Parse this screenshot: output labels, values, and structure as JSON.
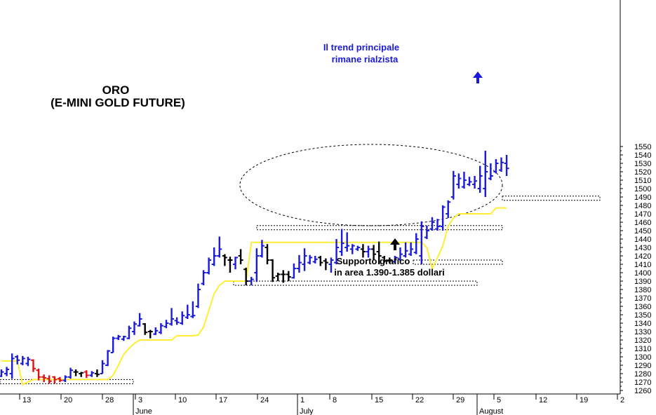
{
  "chart_data": {
    "type": "ohlc",
    "title": "ORO",
    "subtitle": "(E-MINI GOLD FUTURE)",
    "ylim": [
      1260,
      1550
    ],
    "y_ticks": [
      1260,
      1270,
      1280,
      1290,
      1300,
      1310,
      1320,
      1330,
      1340,
      1350,
      1360,
      1370,
      1380,
      1390,
      1400,
      1410,
      1420,
      1430,
      1440,
      1450,
      1460,
      1470,
      1480,
      1490,
      1500,
      1510,
      1520,
      1530,
      1540,
      1550
    ],
    "x_day_labels": [
      "13",
      "20",
      "28",
      "3",
      "10",
      "17",
      "24",
      "1",
      "8",
      "15",
      "22",
      "29",
      "5",
      "12",
      "19",
      "2"
    ],
    "x_month_labels": [
      "June",
      "July",
      "August"
    ],
    "grid": false,
    "colors": {
      "up": "#1a1adc",
      "down": "#e01010",
      "neutral": "#000000",
      "average": "#ffee33",
      "axis": "#000000"
    },
    "bars": [
      {
        "h": 1285,
        "l": 1276,
        "o": 1277,
        "c": 1282,
        "color": "up"
      },
      {
        "h": 1288,
        "l": 1277,
        "o": 1280,
        "c": 1285,
        "color": "up"
      },
      {
        "h": 1304,
        "l": 1274,
        "o": 1280,
        "c": 1298,
        "color": "up"
      },
      {
        "h": 1302,
        "l": 1291,
        "o": 1300,
        "c": 1296,
        "color": "up"
      },
      {
        "h": 1301,
        "l": 1290,
        "o": 1292,
        "c": 1298,
        "color": "up"
      },
      {
        "h": 1300,
        "l": 1289,
        "o": 1292,
        "c": 1297,
        "color": "up"
      },
      {
        "h": 1297,
        "l": 1282,
        "o": 1296,
        "c": 1286,
        "color": "down"
      },
      {
        "h": 1286,
        "l": 1272,
        "o": 1284,
        "c": 1276,
        "color": "down"
      },
      {
        "h": 1279,
        "l": 1270,
        "o": 1276,
        "c": 1275,
        "color": "down"
      },
      {
        "h": 1278,
        "l": 1268,
        "o": 1274,
        "c": 1271,
        "color": "down"
      },
      {
        "h": 1277,
        "l": 1268,
        "o": 1276,
        "c": 1273,
        "color": "down"
      },
      {
        "h": 1276,
        "l": 1270,
        "o": 1274,
        "c": 1272,
        "color": "down"
      },
      {
        "h": 1278,
        "l": 1270,
        "o": 1272,
        "c": 1276,
        "color": "up"
      },
      {
        "h": 1287,
        "l": 1274,
        "o": 1276,
        "c": 1284,
        "color": "up"
      },
      {
        "h": 1285,
        "l": 1277,
        "o": 1282,
        "c": 1282,
        "color": "neutral"
      },
      {
        "h": 1282,
        "l": 1276,
        "o": 1280,
        "c": 1281,
        "color": "neutral"
      },
      {
        "h": 1284,
        "l": 1275,
        "o": 1282,
        "c": 1278,
        "color": "down"
      },
      {
        "h": 1283,
        "l": 1276,
        "o": 1278,
        "c": 1281,
        "color": "up"
      },
      {
        "h": 1285,
        "l": 1276,
        "o": 1280,
        "c": 1279,
        "color": "neutral"
      },
      {
        "h": 1296,
        "l": 1280,
        "o": 1280,
        "c": 1292,
        "color": "up"
      },
      {
        "h": 1308,
        "l": 1289,
        "o": 1290,
        "c": 1307,
        "color": "up"
      },
      {
        "h": 1324,
        "l": 1305,
        "o": 1305,
        "c": 1322,
        "color": "up"
      },
      {
        "h": 1326,
        "l": 1320,
        "o": 1322,
        "c": 1324,
        "color": "up"
      },
      {
        "h": 1325,
        "l": 1319,
        "o": 1321,
        "c": 1324,
        "color": "up"
      },
      {
        "h": 1337,
        "l": 1321,
        "o": 1322,
        "c": 1334,
        "color": "up"
      },
      {
        "h": 1342,
        "l": 1326,
        "o": 1330,
        "c": 1339,
        "color": "up"
      },
      {
        "h": 1352,
        "l": 1336,
        "o": 1337,
        "c": 1345,
        "color": "up"
      },
      {
        "h": 1340,
        "l": 1326,
        "o": 1339,
        "c": 1329,
        "color": "neutral"
      },
      {
        "h": 1332,
        "l": 1322,
        "o": 1330,
        "c": 1330,
        "color": "neutral"
      },
      {
        "h": 1335,
        "l": 1326,
        "o": 1327,
        "c": 1331,
        "color": "up"
      },
      {
        "h": 1340,
        "l": 1327,
        "o": 1329,
        "c": 1337,
        "color": "up"
      },
      {
        "h": 1344,
        "l": 1334,
        "o": 1336,
        "c": 1340,
        "color": "up"
      },
      {
        "h": 1358,
        "l": 1337,
        "o": 1339,
        "c": 1345,
        "color": "up"
      },
      {
        "h": 1347,
        "l": 1338,
        "o": 1343,
        "c": 1341,
        "color": "up"
      },
      {
        "h": 1354,
        "l": 1338,
        "o": 1340,
        "c": 1349,
        "color": "up"
      },
      {
        "h": 1362,
        "l": 1345,
        "o": 1347,
        "c": 1350,
        "color": "up"
      },
      {
        "h": 1366,
        "l": 1346,
        "o": 1348,
        "c": 1349,
        "color": "up"
      },
      {
        "h": 1387,
        "l": 1358,
        "o": 1360,
        "c": 1380,
        "color": "up"
      },
      {
        "h": 1403,
        "l": 1385,
        "o": 1387,
        "c": 1400,
        "color": "up"
      },
      {
        "h": 1418,
        "l": 1398,
        "o": 1400,
        "c": 1415,
        "color": "up"
      },
      {
        "h": 1430,
        "l": 1408,
        "o": 1410,
        "c": 1420,
        "color": "up"
      },
      {
        "h": 1443,
        "l": 1418,
        "o": 1420,
        "c": 1428,
        "color": "up"
      },
      {
        "h": 1422,
        "l": 1408,
        "o": 1420,
        "c": 1418,
        "color": "neutral"
      },
      {
        "h": 1419,
        "l": 1400,
        "o": 1415,
        "c": 1415,
        "color": "neutral"
      },
      {
        "h": 1419,
        "l": 1404,
        "o": 1410,
        "c": 1418,
        "color": "up"
      },
      {
        "h": 1428,
        "l": 1410,
        "o": 1420,
        "c": 1415,
        "color": "neutral"
      },
      {
        "h": 1406,
        "l": 1385,
        "o": 1404,
        "c": 1390,
        "color": "neutral"
      },
      {
        "h": 1395,
        "l": 1385,
        "o": 1390,
        "c": 1392,
        "color": "up"
      },
      {
        "h": 1429,
        "l": 1389,
        "o": 1400,
        "c": 1420,
        "color": "up"
      },
      {
        "h": 1439,
        "l": 1418,
        "o": 1420,
        "c": 1432,
        "color": "up"
      },
      {
        "h": 1434,
        "l": 1410,
        "o": 1430,
        "c": 1415,
        "color": "neutral"
      },
      {
        "h": 1416,
        "l": 1389,
        "o": 1415,
        "c": 1394,
        "color": "neutral"
      },
      {
        "h": 1400,
        "l": 1390,
        "o": 1396,
        "c": 1398,
        "color": "neutral"
      },
      {
        "h": 1403,
        "l": 1388,
        "o": 1398,
        "c": 1398,
        "color": "neutral"
      },
      {
        "h": 1402,
        "l": 1390,
        "o": 1398,
        "c": 1395,
        "color": "neutral"
      },
      {
        "h": 1411,
        "l": 1393,
        "o": 1394,
        "c": 1405,
        "color": "up"
      },
      {
        "h": 1421,
        "l": 1400,
        "o": 1405,
        "c": 1412,
        "color": "up"
      },
      {
        "h": 1429,
        "l": 1402,
        "o": 1410,
        "c": 1420,
        "color": "up"
      },
      {
        "h": 1421,
        "l": 1410,
        "o": 1412,
        "c": 1418,
        "color": "up"
      },
      {
        "h": 1420,
        "l": 1411,
        "o": 1413,
        "c": 1416,
        "color": "up"
      },
      {
        "h": 1420,
        "l": 1408,
        "o": 1418,
        "c": 1412,
        "color": "neutral"
      },
      {
        "h": 1417,
        "l": 1403,
        "o": 1414,
        "c": 1412,
        "color": "neutral"
      },
      {
        "h": 1418,
        "l": 1400,
        "o": 1410,
        "c": 1415,
        "color": "up"
      },
      {
        "h": 1440,
        "l": 1410,
        "o": 1412,
        "c": 1430,
        "color": "up"
      },
      {
        "h": 1452,
        "l": 1420,
        "o": 1425,
        "c": 1435,
        "color": "up"
      },
      {
        "h": 1448,
        "l": 1425,
        "o": 1430,
        "c": 1432,
        "color": "up"
      },
      {
        "h": 1434,
        "l": 1422,
        "o": 1428,
        "c": 1432,
        "color": "up"
      },
      {
        "h": 1432,
        "l": 1426,
        "o": 1428,
        "c": 1430,
        "color": "up"
      },
      {
        "h": 1434,
        "l": 1418,
        "o": 1428,
        "c": 1425,
        "color": "neutral"
      },
      {
        "h": 1432,
        "l": 1418,
        "o": 1425,
        "c": 1428,
        "color": "up"
      },
      {
        "h": 1433,
        "l": 1415,
        "o": 1428,
        "c": 1422,
        "color": "neutral"
      },
      {
        "h": 1437,
        "l": 1410,
        "o": 1425,
        "c": 1420,
        "color": "neutral"
      },
      {
        "h": 1420,
        "l": 1412,
        "o": 1418,
        "c": 1414,
        "color": "neutral"
      },
      {
        "h": 1418,
        "l": 1411,
        "o": 1414,
        "c": 1415,
        "color": "neutral"
      },
      {
        "h": 1420,
        "l": 1411,
        "o": 1413,
        "c": 1418,
        "color": "up"
      },
      {
        "h": 1430,
        "l": 1414,
        "o": 1416,
        "c": 1422,
        "color": "up"
      },
      {
        "h": 1436,
        "l": 1418,
        "o": 1420,
        "c": 1426,
        "color": "up"
      },
      {
        "h": 1436,
        "l": 1420,
        "o": 1422,
        "c": 1428,
        "color": "up"
      },
      {
        "h": 1447,
        "l": 1422,
        "o": 1424,
        "c": 1440,
        "color": "up"
      },
      {
        "h": 1461,
        "l": 1410,
        "o": 1420,
        "c": 1455,
        "color": "up"
      },
      {
        "h": 1456,
        "l": 1440,
        "o": 1442,
        "c": 1450,
        "color": "up"
      },
      {
        "h": 1466,
        "l": 1450,
        "o": 1452,
        "c": 1460,
        "color": "up"
      },
      {
        "h": 1464,
        "l": 1450,
        "o": 1452,
        "c": 1455,
        "color": "up"
      },
      {
        "h": 1480,
        "l": 1450,
        "o": 1455,
        "c": 1478,
        "color": "up"
      },
      {
        "h": 1486,
        "l": 1465,
        "o": 1470,
        "c": 1484,
        "color": "up"
      },
      {
        "h": 1521,
        "l": 1487,
        "o": 1490,
        "c": 1515,
        "color": "up"
      },
      {
        "h": 1518,
        "l": 1500,
        "o": 1505,
        "c": 1512,
        "color": "up"
      },
      {
        "h": 1520,
        "l": 1500,
        "o": 1502,
        "c": 1510,
        "color": "up"
      },
      {
        "h": 1514,
        "l": 1503,
        "o": 1505,
        "c": 1508,
        "color": "up"
      },
      {
        "h": 1515,
        "l": 1500,
        "o": 1505,
        "c": 1509,
        "color": "up"
      },
      {
        "h": 1527,
        "l": 1495,
        "o": 1500,
        "c": 1515,
        "color": "up"
      },
      {
        "h": 1545,
        "l": 1490,
        "o": 1500,
        "c": 1520,
        "color": "up"
      },
      {
        "h": 1530,
        "l": 1510,
        "o": 1512,
        "c": 1515,
        "color": "up"
      },
      {
        "h": 1535,
        "l": 1518,
        "o": 1520,
        "c": 1530,
        "color": "up"
      },
      {
        "h": 1537,
        "l": 1520,
        "o": 1522,
        "c": 1531,
        "color": "up"
      },
      {
        "h": 1540,
        "l": 1515,
        "o": 1530,
        "c": 1524,
        "color": "up"
      }
    ],
    "average_line": [
      1295,
      1295,
      1295,
      1295,
      1267,
      1270,
      1273,
      1273,
      1273,
      1273,
      1273,
      1273,
      1273,
      1273,
      1273,
      1273,
      1273,
      1273,
      1273,
      1273,
      1273,
      1278,
      1290,
      1303,
      1310,
      1316,
      1320,
      1320,
      1320,
      1320,
      1320,
      1320,
      1320,
      1325,
      1325,
      1325,
      1325,
      1326,
      1335,
      1355,
      1375,
      1385,
      1390,
      1390,
      1390,
      1390,
      1390,
      1436,
      1436,
      1436,
      1436,
      1436,
      1436,
      1436,
      1436,
      1436,
      1436,
      1436,
      1436,
      1436,
      1436,
      1436,
      1436,
      1436,
      1436,
      1436,
      1436,
      1436,
      1436,
      1436,
      1436,
      1436,
      1436,
      1436,
      1436,
      1436,
      1436,
      1436,
      1436,
      1436,
      1430,
      1405,
      1418,
      1432,
      1455,
      1465,
      1470,
      1470,
      1470,
      1470,
      1470,
      1470,
      1470,
      1477,
      1477,
      1477
    ],
    "support_boxes": [
      {
        "low": 1268,
        "high": 1273
      },
      {
        "low": 1385,
        "high": 1390
      },
      {
        "low": 1451,
        "high": 1456
      },
      {
        "low": 1410,
        "high": 1415
      },
      {
        "low": 1486,
        "high": 1491
      }
    ],
    "annotations": [
      {
        "lines": [
          "Il trend principale",
          "rimane rialzista"
        ],
        "style": "blue"
      },
      {
        "lines": [
          "Supporto grafico",
          "in area 1.390-1.385 dollari"
        ],
        "style": "black"
      }
    ]
  }
}
